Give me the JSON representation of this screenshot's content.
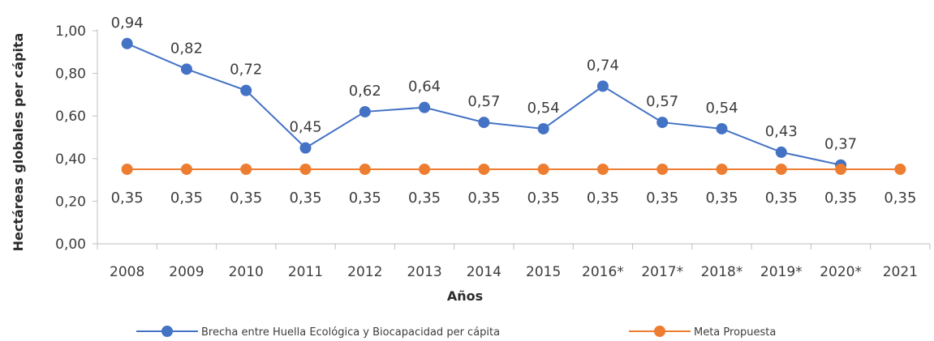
{
  "chart_data": {
    "type": "line",
    "categories": [
      "2008",
      "2009",
      "2010",
      "2011",
      "2012",
      "2013",
      "2014",
      "2015",
      "2016*",
      "2017*",
      "2018*",
      "2019*",
      "2020*",
      "2021"
    ],
    "series": [
      {
        "name": "Brecha entre Huella Ecológica y Biocapacidad per cápita",
        "color": "#4472c4",
        "values": [
          0.94,
          0.82,
          0.72,
          0.45,
          0.62,
          0.64,
          0.57,
          0.54,
          0.74,
          0.57,
          0.54,
          0.43,
          0.37,
          null
        ],
        "labels": [
          "0,94",
          "0,82",
          "0,72",
          "0,45",
          "0,62",
          "0,64",
          "0,57",
          "0,54",
          "0,74",
          "0,57",
          "0,54",
          "0,43",
          "0,37",
          ""
        ]
      },
      {
        "name": "Meta Propuesta",
        "color": "#ed7d31",
        "values": [
          0.35,
          0.35,
          0.35,
          0.35,
          0.35,
          0.35,
          0.35,
          0.35,
          0.35,
          0.35,
          0.35,
          0.35,
          0.35,
          0.35
        ],
        "labels": [
          "0,35",
          "0,35",
          "0,35",
          "0,35",
          "0,35",
          "0,35",
          "0,35",
          "0,35",
          "0,35",
          "0,35",
          "0,35",
          "0,35",
          "0,35",
          "0,35"
        ]
      }
    ],
    "title": "",
    "xlabel": "Años",
    "ylabel": "Hectáreas globales per cápita",
    "ylim": [
      0,
      1
    ],
    "yticks": [
      0,
      0.2,
      0.4,
      0.6,
      0.8,
      1.0
    ],
    "ytick_labels": [
      "0,00",
      "0,20",
      "0,40",
      "0,60",
      "0,80",
      "1,00"
    ],
    "grid": false,
    "legend_position": "bottom"
  }
}
